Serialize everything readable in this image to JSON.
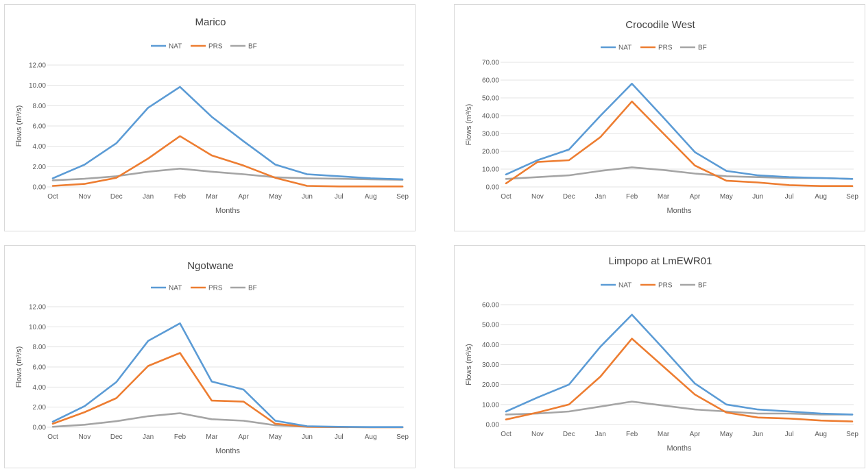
{
  "chart_data": [
    {
      "type": "line",
      "title": "Marico",
      "xlabel": "Months",
      "ylabel": "Flows (m³/s)",
      "categories": [
        "Oct",
        "Nov",
        "Dec",
        "Jan",
        "Feb",
        "Mar",
        "Apr",
        "May",
        "Jun",
        "Jul",
        "Aug",
        "Sep"
      ],
      "ylim": [
        0,
        12
      ],
      "yticks": [
        "0.00",
        "2.00",
        "4.00",
        "6.00",
        "8.00",
        "10.00",
        "12.00"
      ],
      "grid": true,
      "legend": "top-center",
      "series": [
        {
          "name": "NAT",
          "color": "#5b9bd5",
          "values": [
            0.85,
            2.2,
            4.3,
            7.8,
            9.85,
            6.9,
            4.5,
            2.2,
            1.25,
            1.05,
            0.85,
            0.75
          ]
        },
        {
          "name": "PRS",
          "color": "#ed7d31",
          "values": [
            0.1,
            0.3,
            0.9,
            2.8,
            5.0,
            3.1,
            2.1,
            0.9,
            0.1,
            0.05,
            0.05,
            0.05
          ]
        },
        {
          "name": "BF",
          "color": "#a5a5a5",
          "values": [
            0.65,
            0.8,
            1.05,
            1.5,
            1.8,
            1.5,
            1.25,
            0.95,
            0.85,
            0.8,
            0.75,
            0.7
          ]
        }
      ]
    },
    {
      "type": "line",
      "title": "Crocodile West",
      "xlabel": "Months",
      "ylabel": "Flows (m³/s)",
      "categories": [
        "Oct",
        "Nov",
        "Dec",
        "Jan",
        "Feb",
        "Mar",
        "Apr",
        "May",
        "Jun",
        "Jul",
        "Aug",
        "Sep"
      ],
      "ylim": [
        0,
        70
      ],
      "yticks": [
        "0.00",
        "10.00",
        "20.00",
        "30.00",
        "40.00",
        "50.00",
        "60.00",
        "70.00"
      ],
      "grid": true,
      "legend": "top-center",
      "series": [
        {
          "name": "NAT",
          "color": "#5b9bd5",
          "values": [
            7,
            15,
            21,
            40,
            58,
            39,
            19.5,
            9,
            6.5,
            5.5,
            5,
            4.5
          ]
        },
        {
          "name": "PRS",
          "color": "#ed7d31",
          "values": [
            2,
            14,
            15,
            28,
            48,
            30,
            12,
            3.5,
            2.5,
            1,
            0.5,
            0.5
          ]
        },
        {
          "name": "BF",
          "color": "#a5a5a5",
          "values": [
            4.5,
            5.5,
            6.5,
            9,
            11,
            9.5,
            7.5,
            6,
            5.5,
            5,
            5,
            4.5
          ]
        }
      ]
    },
    {
      "type": "line",
      "title": "Ngotwane",
      "xlabel": "Months",
      "ylabel": "Flows (m³/s)",
      "categories": [
        "Oct",
        "Nov",
        "Dec",
        "Jan",
        "Feb",
        "Mar",
        "Apr",
        "May",
        "Jun",
        "Jul",
        "Aug",
        "Sep"
      ],
      "ylim": [
        0,
        12
      ],
      "yticks": [
        "0.00",
        "2.00",
        "4.00",
        "6.00",
        "8.00",
        "10.00",
        "12.00"
      ],
      "grid": true,
      "legend": "top-center",
      "series": [
        {
          "name": "NAT",
          "color": "#5b9bd5",
          "values": [
            0.55,
            2.1,
            4.5,
            8.6,
            10.35,
            4.55,
            3.75,
            0.65,
            0.1,
            0.05,
            0.02,
            0.02
          ]
        },
        {
          "name": "PRS",
          "color": "#ed7d31",
          "values": [
            0.35,
            1.5,
            2.9,
            6.1,
            7.4,
            2.65,
            2.55,
            0.35,
            0.05,
            0.02,
            0.01,
            0.01
          ]
        },
        {
          "name": "BF",
          "color": "#a5a5a5",
          "values": [
            0.05,
            0.25,
            0.6,
            1.1,
            1.4,
            0.8,
            0.65,
            0.2,
            0.05,
            0.02,
            0.01,
            0.01
          ]
        }
      ]
    },
    {
      "type": "line",
      "title": "Limpopo at LmEWR01",
      "xlabel": "Months",
      "ylabel": "Flows (m³/s)",
      "categories": [
        "Oct",
        "Nov",
        "Dec",
        "Jan",
        "Feb",
        "Mar",
        "Apr",
        "May",
        "Jun",
        "Jul",
        "Aug",
        "Sep"
      ],
      "ylim": [
        0,
        60
      ],
      "yticks": [
        "0.00",
        "10.00",
        "20.00",
        "30.00",
        "40.00",
        "50.00",
        "60.00"
      ],
      "grid": true,
      "legend": "top-center",
      "series": [
        {
          "name": "NAT",
          "color": "#5b9bd5",
          "values": [
            6.5,
            13.5,
            20,
            39,
            55,
            38,
            20.5,
            10,
            7.5,
            6.5,
            5.5,
            5
          ]
        },
        {
          "name": "PRS",
          "color": "#ed7d31",
          "values": [
            2.5,
            6,
            10,
            24,
            43,
            29,
            15,
            6,
            3.5,
            3,
            2,
            1.5
          ]
        },
        {
          "name": "BF",
          "color": "#a5a5a5",
          "values": [
            5,
            5.5,
            6.5,
            9,
            11.5,
            9.5,
            7.5,
            6.5,
            5.5,
            5.5,
            5,
            5
          ]
        }
      ]
    }
  ]
}
